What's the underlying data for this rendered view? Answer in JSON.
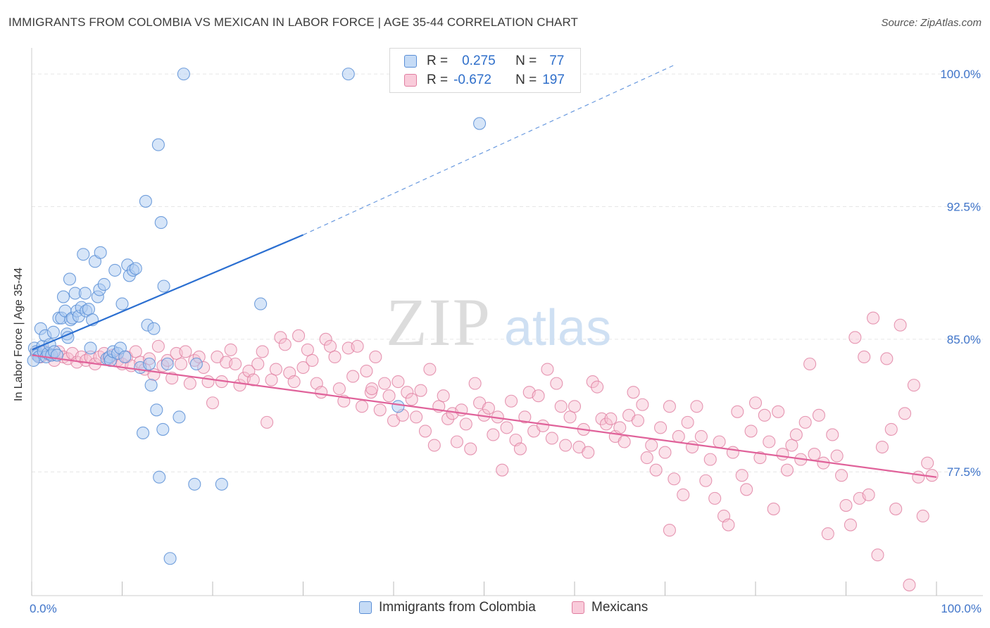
{
  "title": "IMMIGRANTS FROM COLOMBIA VS MEXICAN IN LABOR FORCE | AGE 35-44 CORRELATION CHART",
  "source": "Source: ZipAtlas.com",
  "watermark": {
    "zip": "ZIP",
    "atlas": "atlas"
  },
  "legend": {
    "r_label": "R =",
    "n_label": "N =",
    "rows": [
      {
        "r": "0.275",
        "n": "77"
      },
      {
        "r": "-0.672",
        "n": "197"
      }
    ]
  },
  "colors": {
    "blue_fill": "#aecbf2",
    "blue_stroke": "#5b8fd6",
    "blue_line": "#2b6fd1",
    "pink_fill": "#f7bfd0",
    "pink_stroke": "#e07ea0",
    "pink_line": "#e0629a",
    "tick_label": "#3f74c9",
    "grid": "#e6e6e6"
  },
  "chart_data": {
    "type": "scatter",
    "xlabel": "",
    "ylabel": "In Labor Force | Age 35-44",
    "xlim": [
      0,
      100
    ],
    "ylim": [
      70.5,
      101
    ],
    "x_ticks": [
      0,
      100
    ],
    "x_tick_labels": [
      "0.0%",
      "100.0%"
    ],
    "y_ticks": [
      77.5,
      85.0,
      92.5,
      100.0
    ],
    "y_tick_labels": [
      "77.5%",
      "85.0%",
      "92.5%",
      "100.0%"
    ],
    "grid": true,
    "legend_position": "bottom",
    "series": [
      {
        "name": "Immigrants from Colombia",
        "color": "#5b8fd6",
        "trend": {
          "x": [
            0,
            30
          ],
          "y": [
            84.4,
            90.9
          ],
          "dashed_to": [
            71,
            100.5
          ]
        },
        "points": [
          [
            0.3,
            84.5
          ],
          [
            0.5,
            84.3
          ],
          [
            0.6,
            84.1
          ],
          [
            0.8,
            84.0
          ],
          [
            1.0,
            85.6
          ],
          [
            1.2,
            84.6
          ],
          [
            1.3,
            84.3
          ],
          [
            1.5,
            85.2
          ],
          [
            1.6,
            84.0
          ],
          [
            1.8,
            84.2
          ],
          [
            2.0,
            84.7
          ],
          [
            2.2,
            84.1
          ],
          [
            2.4,
            85.4
          ],
          [
            2.5,
            84.3
          ],
          [
            2.8,
            84.1
          ],
          [
            3.0,
            86.2
          ],
          [
            3.3,
            86.2
          ],
          [
            3.5,
            87.4
          ],
          [
            3.7,
            86.6
          ],
          [
            3.9,
            85.3
          ],
          [
            4.0,
            85.1
          ],
          [
            4.2,
            88.4
          ],
          [
            4.3,
            86.1
          ],
          [
            4.5,
            86.2
          ],
          [
            4.8,
            87.6
          ],
          [
            5.0,
            86.6
          ],
          [
            5.2,
            86.3
          ],
          [
            5.5,
            86.8
          ],
          [
            5.7,
            89.8
          ],
          [
            5.9,
            87.6
          ],
          [
            6.0,
            86.6
          ],
          [
            6.3,
            86.7
          ],
          [
            6.5,
            84.5
          ],
          [
            6.7,
            86.1
          ],
          [
            7.0,
            89.4
          ],
          [
            7.3,
            87.4
          ],
          [
            7.5,
            87.8
          ],
          [
            7.6,
            89.9
          ],
          [
            8.0,
            88.1
          ],
          [
            8.3,
            83.9
          ],
          [
            8.6,
            84.0
          ],
          [
            8.7,
            83.8
          ],
          [
            9.0,
            84.3
          ],
          [
            9.2,
            88.9
          ],
          [
            9.5,
            84.2
          ],
          [
            9.8,
            84.5
          ],
          [
            10.0,
            87.0
          ],
          [
            10.3,
            84.0
          ],
          [
            10.6,
            89.2
          ],
          [
            10.8,
            88.6
          ],
          [
            11.2,
            88.9
          ],
          [
            11.5,
            89.0
          ],
          [
            12.0,
            83.4
          ],
          [
            12.3,
            79.7
          ],
          [
            12.6,
            92.8
          ],
          [
            12.8,
            85.8
          ],
          [
            13.0,
            83.6
          ],
          [
            13.2,
            82.4
          ],
          [
            13.5,
            85.6
          ],
          [
            13.8,
            81.0
          ],
          [
            14.0,
            96.0
          ],
          [
            14.1,
            77.2
          ],
          [
            14.3,
            91.6
          ],
          [
            14.5,
            79.9
          ],
          [
            14.6,
            88.0
          ],
          [
            15.0,
            83.6
          ],
          [
            15.3,
            72.6
          ],
          [
            16.3,
            80.6
          ],
          [
            16.8,
            100.0
          ],
          [
            18.0,
            76.8
          ],
          [
            18.2,
            83.6
          ],
          [
            21.0,
            76.8
          ],
          [
            25.3,
            87.0
          ],
          [
            35.0,
            100.0
          ],
          [
            40.5,
            81.2
          ],
          [
            49.5,
            97.2
          ],
          [
            0.2,
            83.8
          ]
        ]
      },
      {
        "name": "Mexicans",
        "color": "#e07ea0",
        "trend": {
          "x": [
            0,
            100
          ],
          "y": [
            84.1,
            77.2
          ]
        },
        "points": [
          [
            0.5,
            84.2
          ],
          [
            1.0,
            84.0
          ],
          [
            1.5,
            84.3
          ],
          [
            2.0,
            84.1
          ],
          [
            2.5,
            83.8
          ],
          [
            3.0,
            84.3
          ],
          [
            3.5,
            84.0
          ],
          [
            4.0,
            83.9
          ],
          [
            4.5,
            84.2
          ],
          [
            5.0,
            83.7
          ],
          [
            5.5,
            84.0
          ],
          [
            6.0,
            83.8
          ],
          [
            6.5,
            84.0
          ],
          [
            7.0,
            83.6
          ],
          [
            7.5,
            84.0
          ],
          [
            8.0,
            84.2
          ],
          [
            8.5,
            83.9
          ],
          [
            9.0,
            84.1
          ],
          [
            9.5,
            83.8
          ],
          [
            10.0,
            83.6
          ],
          [
            10.5,
            84.0
          ],
          [
            11.0,
            83.5
          ],
          [
            11.5,
            84.3
          ],
          [
            12.0,
            83.7
          ],
          [
            12.5,
            83.3
          ],
          [
            13.0,
            83.9
          ],
          [
            13.5,
            83.0
          ],
          [
            14.0,
            84.6
          ],
          [
            14.5,
            83.5
          ],
          [
            15.0,
            83.8
          ],
          [
            15.5,
            82.8
          ],
          [
            16.0,
            84.2
          ],
          [
            16.5,
            83.6
          ],
          [
            17.0,
            84.3
          ],
          [
            17.5,
            82.5
          ],
          [
            18.0,
            83.8
          ],
          [
            18.5,
            84.0
          ],
          [
            19.0,
            83.4
          ],
          [
            19.5,
            82.6
          ],
          [
            20.0,
            81.4
          ],
          [
            20.5,
            84.0
          ],
          [
            21.0,
            82.6
          ],
          [
            21.5,
            83.7
          ],
          [
            22.0,
            84.4
          ],
          [
            22.5,
            83.6
          ],
          [
            23.0,
            82.4
          ],
          [
            23.5,
            82.8
          ],
          [
            24.0,
            83.2
          ],
          [
            24.5,
            82.7
          ],
          [
            25.0,
            83.6
          ],
          [
            25.5,
            84.3
          ],
          [
            26.0,
            80.3
          ],
          [
            26.5,
            82.7
          ],
          [
            27.0,
            83.3
          ],
          [
            27.5,
            85.1
          ],
          [
            28.0,
            84.7
          ],
          [
            28.5,
            83.1
          ],
          [
            29.0,
            82.6
          ],
          [
            29.5,
            85.2
          ],
          [
            30.0,
            83.4
          ],
          [
            30.5,
            84.4
          ],
          [
            31.0,
            83.8
          ],
          [
            31.5,
            82.5
          ],
          [
            32.0,
            82.0
          ],
          [
            32.5,
            85.0
          ],
          [
            33.0,
            84.6
          ],
          [
            33.5,
            84.0
          ],
          [
            34.0,
            82.2
          ],
          [
            34.5,
            81.5
          ],
          [
            35.0,
            84.5
          ],
          [
            35.5,
            82.9
          ],
          [
            36.0,
            84.6
          ],
          [
            36.5,
            81.2
          ],
          [
            37.0,
            83.2
          ],
          [
            37.5,
            82.0
          ],
          [
            38.0,
            84.0
          ],
          [
            38.5,
            81.0
          ],
          [
            39.0,
            82.5
          ],
          [
            39.5,
            81.8
          ],
          [
            40.0,
            80.4
          ],
          [
            40.5,
            82.6
          ],
          [
            41.0,
            80.7
          ],
          [
            41.5,
            82.0
          ],
          [
            42.0,
            81.6
          ],
          [
            42.5,
            80.6
          ],
          [
            43.0,
            82.1
          ],
          [
            43.5,
            79.8
          ],
          [
            44.0,
            83.3
          ],
          [
            44.5,
            79.0
          ],
          [
            45.0,
            81.2
          ],
          [
            45.5,
            81.8
          ],
          [
            46.0,
            80.5
          ],
          [
            46.5,
            80.8
          ],
          [
            47.0,
            79.2
          ],
          [
            47.5,
            81.0
          ],
          [
            48.0,
            80.2
          ],
          [
            48.5,
            78.8
          ],
          [
            49.0,
            82.5
          ],
          [
            49.5,
            81.4
          ],
          [
            50.0,
            80.7
          ],
          [
            50.5,
            81.1
          ],
          [
            51.0,
            79.6
          ],
          [
            51.5,
            80.6
          ],
          [
            52.0,
            77.6
          ],
          [
            52.5,
            80.0
          ],
          [
            53.0,
            81.5
          ],
          [
            53.5,
            79.3
          ],
          [
            54.0,
            78.8
          ],
          [
            54.5,
            80.6
          ],
          [
            55.0,
            82.0
          ],
          [
            55.5,
            79.8
          ],
          [
            56.0,
            81.8
          ],
          [
            56.5,
            80.1
          ],
          [
            57.0,
            83.3
          ],
          [
            57.5,
            79.4
          ],
          [
            58.0,
            82.5
          ],
          [
            58.5,
            81.2
          ],
          [
            59.0,
            79.0
          ],
          [
            59.5,
            80.6
          ],
          [
            60.0,
            81.2
          ],
          [
            60.5,
            78.9
          ],
          [
            61.0,
            79.9
          ],
          [
            61.5,
            78.6
          ],
          [
            62.0,
            82.6
          ],
          [
            62.5,
            82.3
          ],
          [
            63.0,
            80.5
          ],
          [
            63.5,
            80.2
          ],
          [
            64.0,
            80.5
          ],
          [
            64.5,
            79.5
          ],
          [
            65.0,
            80.0
          ],
          [
            65.5,
            79.2
          ],
          [
            66.0,
            80.7
          ],
          [
            66.5,
            82.0
          ],
          [
            67.0,
            80.4
          ],
          [
            67.5,
            81.3
          ],
          [
            68.0,
            78.3
          ],
          [
            68.5,
            79.0
          ],
          [
            69.0,
            77.6
          ],
          [
            69.5,
            80.0
          ],
          [
            70.0,
            78.6
          ],
          [
            70.5,
            81.2
          ],
          [
            71.0,
            77.1
          ],
          [
            71.5,
            79.5
          ],
          [
            72.0,
            76.2
          ],
          [
            72.5,
            80.3
          ],
          [
            73.0,
            78.9
          ],
          [
            73.5,
            81.2
          ],
          [
            74.0,
            79.5
          ],
          [
            74.5,
            77.0
          ],
          [
            75.0,
            78.2
          ],
          [
            75.5,
            76.0
          ],
          [
            76.0,
            79.2
          ],
          [
            76.5,
            75.0
          ],
          [
            77.0,
            74.5
          ],
          [
            77.5,
            78.6
          ],
          [
            78.0,
            80.9
          ],
          [
            78.5,
            77.3
          ],
          [
            79.0,
            76.5
          ],
          [
            79.5,
            79.8
          ],
          [
            80.0,
            81.4
          ],
          [
            80.5,
            78.3
          ],
          [
            81.0,
            80.7
          ],
          [
            81.5,
            79.2
          ],
          [
            82.0,
            75.4
          ],
          [
            82.5,
            80.9
          ],
          [
            83.0,
            78.5
          ],
          [
            83.5,
            77.6
          ],
          [
            84.0,
            79.0
          ],
          [
            84.5,
            79.6
          ],
          [
            85.0,
            78.2
          ],
          [
            85.5,
            80.3
          ],
          [
            86.0,
            83.6
          ],
          [
            86.5,
            78.5
          ],
          [
            87.0,
            80.7
          ],
          [
            87.5,
            78.0
          ],
          [
            88.0,
            74.0
          ],
          [
            88.5,
            79.6
          ],
          [
            89.0,
            78.4
          ],
          [
            89.5,
            77.3
          ],
          [
            90.0,
            75.6
          ],
          [
            90.5,
            74.5
          ],
          [
            91.0,
            85.1
          ],
          [
            91.5,
            76.0
          ],
          [
            92.0,
            84.0
          ],
          [
            92.5,
            76.2
          ],
          [
            93.0,
            86.2
          ],
          [
            93.5,
            72.8
          ],
          [
            94.0,
            78.9
          ],
          [
            94.5,
            83.9
          ],
          [
            95.0,
            79.9
          ],
          [
            95.5,
            75.4
          ],
          [
            96.0,
            85.8
          ],
          [
            96.5,
            80.8
          ],
          [
            97.0,
            71.1
          ],
          [
            97.5,
            82.4
          ],
          [
            98.0,
            77.2
          ],
          [
            98.5,
            75.0
          ],
          [
            99.0,
            78.0
          ],
          [
            99.5,
            77.3
          ],
          [
            70.5,
            74.2
          ],
          [
            37.6,
            82.2
          ]
        ]
      }
    ]
  },
  "bottom_legend": [
    {
      "label": "Immigrants from Colombia"
    },
    {
      "label": "Mexicans"
    }
  ]
}
